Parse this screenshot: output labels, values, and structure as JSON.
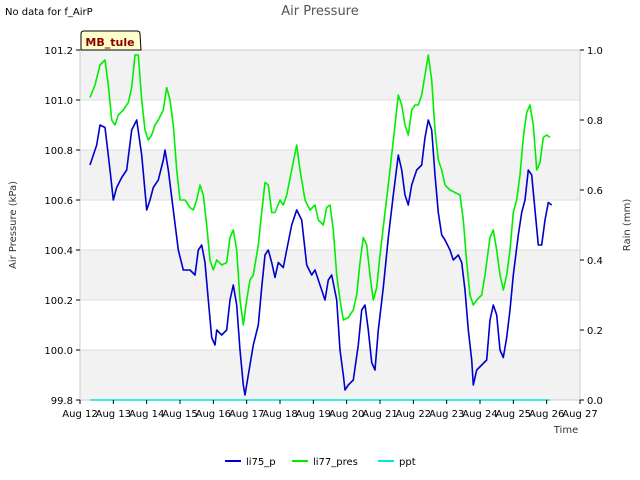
{
  "notice": "No data for f_AirP",
  "chart_data": {
    "type": "line",
    "title": "Air Pressure",
    "xlabel": "Time",
    "ylabel": "Air Pressure (kPa)",
    "y2label": "Rain (mm)",
    "xlim": [
      12,
      27
    ],
    "ylim": [
      99.8,
      101.2
    ],
    "y2lim": [
      0.0,
      1.0
    ],
    "x_ticks": [
      {
        "value": 12,
        "label": "Aug 12"
      },
      {
        "value": 13,
        "label": "Aug 13"
      },
      {
        "value": 14,
        "label": "Aug 14"
      },
      {
        "value": 15,
        "label": "Aug 15"
      },
      {
        "value": 16,
        "label": "Aug 16"
      },
      {
        "value": 17,
        "label": "Aug 17"
      },
      {
        "value": 18,
        "label": "Aug 18"
      },
      {
        "value": 19,
        "label": "Aug 19"
      },
      {
        "value": 20,
        "label": "Aug 20"
      },
      {
        "value": 21,
        "label": "Aug 21"
      },
      {
        "value": 22,
        "label": "Aug 22"
      },
      {
        "value": 23,
        "label": "Aug 23"
      },
      {
        "value": 24,
        "label": "Aug 24"
      },
      {
        "value": 25,
        "label": "Aug 25"
      },
      {
        "value": 26,
        "label": "Aug 26"
      },
      {
        "value": 27,
        "label": "Aug 27"
      }
    ],
    "y_ticks": [
      {
        "value": 99.8,
        "label": "99.8"
      },
      {
        "value": 100.0,
        "label": "100.0"
      },
      {
        "value": 100.2,
        "label": "100.2"
      },
      {
        "value": 100.4,
        "label": "100.4"
      },
      {
        "value": 100.6,
        "label": "100.6"
      },
      {
        "value": 100.8,
        "label": "100.8"
      },
      {
        "value": 101.0,
        "label": "101.0"
      },
      {
        "value": 101.2,
        "label": "101.2"
      }
    ],
    "y2_ticks": [
      {
        "value": 0.0,
        "label": "0.0"
      },
      {
        "value": 0.2,
        "label": "0.2"
      },
      {
        "value": 0.4,
        "label": "0.4"
      },
      {
        "value": 0.6,
        "label": "0.6"
      },
      {
        "value": 0.8,
        "label": "0.8"
      },
      {
        "value": 1.0,
        "label": "1.0"
      }
    ],
    "bands": [
      [
        99.8,
        100.0
      ],
      [
        100.2,
        100.4
      ],
      [
        100.6,
        100.8
      ],
      [
        101.0,
        101.2
      ]
    ],
    "station_label": "MB_tule",
    "series": [
      {
        "name": "li75_p",
        "color": "#0000cc",
        "axis": "left",
        "points": [
          [
            12.3,
            100.74
          ],
          [
            12.5,
            100.82
          ],
          [
            12.6,
            100.9
          ],
          [
            12.75,
            100.89
          ],
          [
            12.9,
            100.72
          ],
          [
            13.0,
            100.6
          ],
          [
            13.1,
            100.65
          ],
          [
            13.25,
            100.69
          ],
          [
            13.4,
            100.72
          ],
          [
            13.55,
            100.88
          ],
          [
            13.7,
            100.92
          ],
          [
            13.85,
            100.78
          ],
          [
            14.0,
            100.56
          ],
          [
            14.1,
            100.6
          ],
          [
            14.2,
            100.65
          ],
          [
            14.35,
            100.68
          ],
          [
            14.5,
            100.76
          ],
          [
            14.55,
            100.8
          ],
          [
            14.65,
            100.72
          ],
          [
            14.8,
            100.56
          ],
          [
            14.95,
            100.4
          ],
          [
            15.1,
            100.32
          ],
          [
            15.3,
            100.32
          ],
          [
            15.45,
            100.3
          ],
          [
            15.55,
            100.4
          ],
          [
            15.65,
            100.42
          ],
          [
            15.75,
            100.35
          ],
          [
            15.85,
            100.2
          ],
          [
            15.95,
            100.05
          ],
          [
            16.05,
            100.02
          ],
          [
            16.1,
            100.08
          ],
          [
            16.25,
            100.06
          ],
          [
            16.4,
            100.08
          ],
          [
            16.5,
            100.2
          ],
          [
            16.6,
            100.26
          ],
          [
            16.7,
            100.18
          ],
          [
            16.8,
            100.0
          ],
          [
            16.9,
            99.86
          ],
          [
            16.95,
            99.82
          ],
          [
            17.05,
            99.9
          ],
          [
            17.2,
            100.02
          ],
          [
            17.35,
            100.1
          ],
          [
            17.45,
            100.25
          ],
          [
            17.55,
            100.38
          ],
          [
            17.65,
            100.4
          ],
          [
            17.75,
            100.35
          ],
          [
            17.85,
            100.29
          ],
          [
            17.95,
            100.35
          ],
          [
            18.1,
            100.33
          ],
          [
            18.2,
            100.4
          ],
          [
            18.35,
            100.5
          ],
          [
            18.5,
            100.56
          ],
          [
            18.65,
            100.52
          ],
          [
            18.8,
            100.34
          ],
          [
            18.95,
            100.3
          ],
          [
            19.05,
            100.32
          ],
          [
            19.2,
            100.26
          ],
          [
            19.35,
            100.2
          ],
          [
            19.45,
            100.28
          ],
          [
            19.55,
            100.3
          ],
          [
            19.7,
            100.2
          ],
          [
            19.8,
            100.0
          ],
          [
            19.9,
            99.9
          ],
          [
            19.95,
            99.84
          ],
          [
            20.05,
            99.86
          ],
          [
            20.2,
            99.88
          ],
          [
            20.35,
            100.02
          ],
          [
            20.45,
            100.16
          ],
          [
            20.55,
            100.18
          ],
          [
            20.65,
            100.08
          ],
          [
            20.75,
            99.95
          ],
          [
            20.85,
            99.92
          ],
          [
            20.95,
            100.08
          ],
          [
            21.1,
            100.25
          ],
          [
            21.25,
            100.45
          ],
          [
            21.4,
            100.62
          ],
          [
            21.55,
            100.78
          ],
          [
            21.65,
            100.72
          ],
          [
            21.75,
            100.62
          ],
          [
            21.85,
            100.58
          ],
          [
            21.95,
            100.66
          ],
          [
            22.1,
            100.72
          ],
          [
            22.25,
            100.74
          ],
          [
            22.35,
            100.85
          ],
          [
            22.45,
            100.92
          ],
          [
            22.55,
            100.88
          ],
          [
            22.65,
            100.7
          ],
          [
            22.75,
            100.55
          ],
          [
            22.85,
            100.46
          ],
          [
            22.95,
            100.44
          ],
          [
            23.1,
            100.4
          ],
          [
            23.2,
            100.36
          ],
          [
            23.35,
            100.38
          ],
          [
            23.45,
            100.35
          ],
          [
            23.55,
            100.24
          ],
          [
            23.65,
            100.08
          ],
          [
            23.75,
            99.96
          ],
          [
            23.8,
            99.86
          ],
          [
            23.9,
            99.92
          ],
          [
            24.05,
            99.94
          ],
          [
            24.2,
            99.96
          ],
          [
            24.3,
            100.12
          ],
          [
            24.4,
            100.18
          ],
          [
            24.5,
            100.14
          ],
          [
            24.6,
            100.0
          ],
          [
            24.7,
            99.97
          ],
          [
            24.8,
            100.05
          ],
          [
            24.9,
            100.16
          ],
          [
            25.0,
            100.3
          ],
          [
            25.15,
            100.46
          ],
          [
            25.25,
            100.55
          ],
          [
            25.35,
            100.6
          ],
          [
            25.45,
            100.72
          ],
          [
            25.55,
            100.7
          ],
          [
            25.65,
            100.56
          ],
          [
            25.75,
            100.42
          ],
          [
            25.85,
            100.42
          ],
          [
            25.95,
            100.52
          ],
          [
            26.05,
            100.59
          ],
          [
            26.15,
            100.58
          ]
        ]
      },
      {
        "name": "li77_pres",
        "color": "#00ee00",
        "axis": "left",
        "points": [
          [
            12.3,
            101.01
          ],
          [
            12.45,
            101.06
          ],
          [
            12.6,
            101.14
          ],
          [
            12.75,
            101.16
          ],
          [
            12.85,
            101.06
          ],
          [
            12.95,
            100.92
          ],
          [
            13.05,
            100.9
          ],
          [
            13.15,
            100.94
          ],
          [
            13.3,
            100.96
          ],
          [
            13.45,
            100.99
          ],
          [
            13.55,
            101.05
          ],
          [
            13.65,
            101.18
          ],
          [
            13.75,
            101.18
          ],
          [
            13.85,
            101.0
          ],
          [
            13.95,
            100.88
          ],
          [
            14.05,
            100.84
          ],
          [
            14.15,
            100.86
          ],
          [
            14.25,
            100.9
          ],
          [
            14.35,
            100.92
          ],
          [
            14.5,
            100.96
          ],
          [
            14.6,
            101.05
          ],
          [
            14.7,
            101.0
          ],
          [
            14.8,
            100.9
          ],
          [
            14.9,
            100.72
          ],
          [
            15.0,
            100.6
          ],
          [
            15.15,
            100.6
          ],
          [
            15.3,
            100.57
          ],
          [
            15.4,
            100.56
          ],
          [
            15.5,
            100.6
          ],
          [
            15.6,
            100.66
          ],
          [
            15.7,
            100.62
          ],
          [
            15.8,
            100.5
          ],
          [
            15.9,
            100.36
          ],
          [
            16.0,
            100.32
          ],
          [
            16.1,
            100.36
          ],
          [
            16.25,
            100.34
          ],
          [
            16.4,
            100.35
          ],
          [
            16.5,
            100.45
          ],
          [
            16.6,
            100.48
          ],
          [
            16.7,
            100.4
          ],
          [
            16.8,
            100.2
          ],
          [
            16.9,
            100.1
          ],
          [
            17.0,
            100.2
          ],
          [
            17.1,
            100.28
          ],
          [
            17.2,
            100.3
          ],
          [
            17.35,
            100.42
          ],
          [
            17.45,
            100.55
          ],
          [
            17.55,
            100.67
          ],
          [
            17.65,
            100.66
          ],
          [
            17.75,
            100.55
          ],
          [
            17.85,
            100.55
          ],
          [
            18.0,
            100.6
          ],
          [
            18.1,
            100.58
          ],
          [
            18.2,
            100.62
          ],
          [
            18.35,
            100.72
          ],
          [
            18.5,
            100.82
          ],
          [
            18.6,
            100.72
          ],
          [
            18.75,
            100.6
          ],
          [
            18.9,
            100.56
          ],
          [
            19.05,
            100.58
          ],
          [
            19.15,
            100.52
          ],
          [
            19.3,
            100.5
          ],
          [
            19.4,
            100.57
          ],
          [
            19.5,
            100.58
          ],
          [
            19.6,
            100.48
          ],
          [
            19.7,
            100.3
          ],
          [
            19.8,
            100.2
          ],
          [
            19.9,
            100.12
          ],
          [
            20.05,
            100.13
          ],
          [
            20.2,
            100.16
          ],
          [
            20.3,
            100.22
          ],
          [
            20.4,
            100.35
          ],
          [
            20.5,
            100.45
          ],
          [
            20.6,
            100.42
          ],
          [
            20.7,
            100.3
          ],
          [
            20.8,
            100.2
          ],
          [
            20.9,
            100.25
          ],
          [
            21.0,
            100.38
          ],
          [
            21.15,
            100.55
          ],
          [
            21.3,
            100.72
          ],
          [
            21.45,
            100.9
          ],
          [
            21.55,
            101.02
          ],
          [
            21.65,
            100.98
          ],
          [
            21.75,
            100.9
          ],
          [
            21.85,
            100.86
          ],
          [
            21.95,
            100.96
          ],
          [
            22.05,
            100.98
          ],
          [
            22.15,
            100.98
          ],
          [
            22.25,
            101.02
          ],
          [
            22.35,
            101.1
          ],
          [
            22.45,
            101.18
          ],
          [
            22.55,
            101.08
          ],
          [
            22.65,
            100.88
          ],
          [
            22.75,
            100.76
          ],
          [
            22.85,
            100.72
          ],
          [
            22.95,
            100.66
          ],
          [
            23.1,
            100.64
          ],
          [
            23.25,
            100.63
          ],
          [
            23.4,
            100.62
          ],
          [
            23.5,
            100.52
          ],
          [
            23.6,
            100.35
          ],
          [
            23.7,
            100.22
          ],
          [
            23.8,
            100.18
          ],
          [
            23.9,
            100.2
          ],
          [
            24.05,
            100.22
          ],
          [
            24.15,
            100.3
          ],
          [
            24.3,
            100.45
          ],
          [
            24.4,
            100.48
          ],
          [
            24.5,
            100.4
          ],
          [
            24.6,
            100.3
          ],
          [
            24.7,
            100.24
          ],
          [
            24.8,
            100.3
          ],
          [
            24.9,
            100.4
          ],
          [
            25.0,
            100.55
          ],
          [
            25.1,
            100.6
          ],
          [
            25.2,
            100.7
          ],
          [
            25.3,
            100.85
          ],
          [
            25.4,
            100.95
          ],
          [
            25.5,
            100.98
          ],
          [
            25.6,
            100.9
          ],
          [
            25.7,
            100.72
          ],
          [
            25.8,
            100.75
          ],
          [
            25.9,
            100.85
          ],
          [
            26.0,
            100.86
          ],
          [
            26.1,
            100.85
          ]
        ]
      },
      {
        "name": "ppt",
        "color": "#00e5e5",
        "axis": "right",
        "points": [
          [
            12.3,
            0.0
          ],
          [
            26.1,
            0.0
          ]
        ]
      }
    ]
  }
}
